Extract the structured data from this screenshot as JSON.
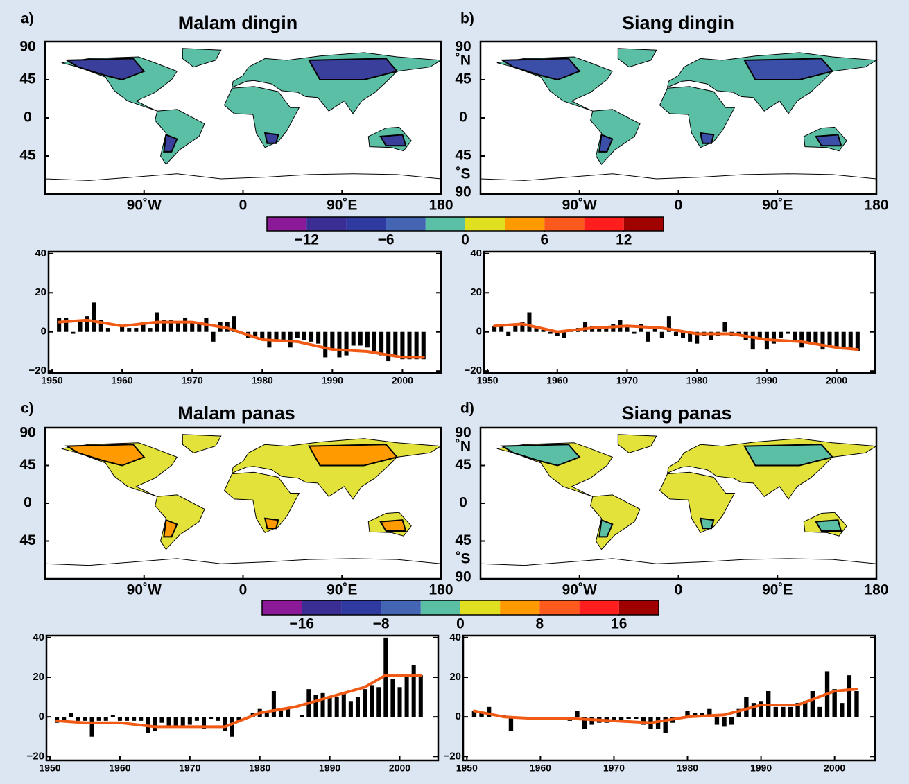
{
  "chart_data": [
    {
      "type": "map",
      "label": "a)",
      "title": "Malam dingin",
      "land_color": "#5bbfa6",
      "accent_color": "#3b3f9c",
      "xlim": [
        -180,
        180
      ],
      "ylim": [
        -90,
        90
      ],
      "xticks": [
        {
          "value": -90,
          "label": "90˚W"
        },
        0,
        {
          "value": 90,
          "label": "90˚E"
        },
        180
      ],
      "yticks": [
        90,
        45,
        0,
        {
          "value": -45,
          "label": "45"
        }
      ]
    },
    {
      "type": "map",
      "label": "b)",
      "title": "Siang dingin",
      "land_color": "#5bbfa6",
      "accent_color": "#3b4fa8",
      "xlim": [
        -180,
        180
      ],
      "ylim": [
        -90,
        90
      ],
      "xticks": [
        {
          "value": -90,
          "label": "90˚W"
        },
        0,
        {
          "value": 90,
          "label": "90˚E"
        },
        180
      ],
      "yticks": [
        90,
        45,
        0,
        {
          "value": -45,
          "label": "45"
        },
        {
          "value": -90,
          "label": "90"
        }
      ],
      "north_label": "˚N",
      "south_label": "˚S"
    },
    {
      "type": "colorbar",
      "lim": [
        -15,
        15
      ],
      "colors": [
        "#8c1a98",
        "#3a2e94",
        "#2f3aa0",
        "#4464b4",
        "#5bbfa6",
        "#e0e020",
        "#ff9a00",
        "#ff5a1e",
        "#ff1e1e",
        "#a00000"
      ],
      "ticks": [
        {
          "value": -12,
          "label": "−12"
        },
        {
          "value": -6,
          "label": "−6"
        },
        0,
        6,
        12
      ]
    },
    {
      "type": "bar",
      "color": "#000000",
      "xlim": [
        1949.5,
        2005.5
      ],
      "ylim": [
        -21,
        41
      ],
      "xticks": [
        1950,
        1960,
        1970,
        1980,
        1990,
        2000
      ],
      "yticks": [
        {
          "value": -20,
          "label": "−20"
        },
        0,
        20,
        40
      ],
      "x": [
        1951,
        1952,
        1953,
        1954,
        1955,
        1956,
        1957,
        1958,
        1959,
        1960,
        1961,
        1962,
        1963,
        1964,
        1965,
        1966,
        1967,
        1968,
        1969,
        1970,
        1971,
        1972,
        1973,
        1974,
        1975,
        1976,
        1977,
        1978,
        1979,
        1980,
        1981,
        1982,
        1983,
        1984,
        1985,
        1986,
        1987,
        1988,
        1989,
        1990,
        1991,
        1992,
        1993,
        1994,
        1995,
        1996,
        1997,
        1998,
        1999,
        2000,
        2001,
        2002,
        2003
      ],
      "values": [
        7,
        7,
        -1,
        5,
        8,
        15,
        6,
        2,
        0,
        3,
        2,
        2,
        5,
        2,
        10,
        6,
        6,
        5,
        7,
        5,
        5,
        7,
        -5,
        5,
        5,
        8,
        -1,
        -3,
        -3,
        -4,
        -8,
        -4,
        -4,
        -8,
        -3,
        -4,
        -5,
        -6,
        -13,
        -9,
        -13,
        -12,
        -7,
        -7,
        -8,
        -10,
        -12,
        -15,
        -12,
        -14,
        -14,
        -14,
        -14
      ],
      "trend": {
        "color": "#f05a14",
        "x": [
          1951,
          1955,
          1960,
          1965,
          1970,
          1975,
          1980,
          1985,
          1990,
          1995,
          2000,
          2003
        ],
        "values": [
          5,
          6,
          3,
          5,
          5,
          2,
          -4,
          -5,
          -9,
          -10,
          -13,
          -13
        ]
      }
    },
    {
      "type": "bar",
      "color": "#000000",
      "xlim": [
        1949.5,
        2005.5
      ],
      "ylim": [
        -21,
        41
      ],
      "xticks": [
        1950,
        1960,
        1970,
        1980,
        1990,
        2000
      ],
      "yticks": [
        {
          "value": -20,
          "label": "−20"
        },
        0,
        20,
        40
      ],
      "x": [
        1951,
        1952,
        1953,
        1954,
        1955,
        1956,
        1957,
        1958,
        1959,
        1960,
        1961,
        1962,
        1963,
        1964,
        1965,
        1966,
        1967,
        1968,
        1969,
        1970,
        1971,
        1972,
        1973,
        1974,
        1975,
        1976,
        1977,
        1978,
        1979,
        1980,
        1981,
        1982,
        1983,
        1984,
        1985,
        1986,
        1987,
        1988,
        1989,
        1990,
        1991,
        1992,
        1993,
        1994,
        1995,
        1996,
        1997,
        1998,
        1999,
        2000,
        2001,
        2002,
        2003
      ],
      "values": [
        3,
        3,
        -2,
        4,
        5,
        10,
        3,
        1,
        -1,
        -2,
        -3,
        1,
        2,
        5,
        3,
        3,
        3,
        4,
        6,
        3,
        -1,
        4,
        -5,
        3,
        -3,
        8,
        -2,
        -3,
        -5,
        -6,
        -2,
        -4,
        -2,
        5,
        -2,
        -2,
        -4,
        -9,
        -4,
        -9,
        -6,
        -3,
        -1,
        -4,
        -8,
        -6,
        -6,
        -9,
        -8,
        -8,
        -9,
        -9,
        -10
      ],
      "trend": {
        "color": "#f05a14",
        "x": [
          1951,
          1955,
          1960,
          1965,
          1970,
          1975,
          1980,
          1985,
          1990,
          1995,
          2000,
          2003
        ],
        "values": [
          3,
          4,
          0,
          2,
          3,
          2,
          -1,
          -1,
          -4,
          -5,
          -8,
          -9
        ]
      }
    },
    {
      "type": "map",
      "label": "c)",
      "title": "Malam panas",
      "land_color": "#e2e23a",
      "accent_color": "#ff9a00",
      "xlim": [
        -180,
        180
      ],
      "ylim": [
        -90,
        90
      ],
      "xticks": [
        {
          "value": -90,
          "label": "90˚W"
        },
        0,
        {
          "value": 90,
          "label": "90˚E"
        },
        180
      ],
      "yticks": [
        90,
        45,
        0,
        {
          "value": -45,
          "label": "45"
        }
      ]
    },
    {
      "type": "map",
      "label": "d)",
      "title": "Siang panas",
      "land_color": "#e2e23a",
      "accent_color": "#5bbfa6",
      "xlim": [
        -180,
        180
      ],
      "ylim": [
        -90,
        90
      ],
      "xticks": [
        {
          "value": -90,
          "label": "90˚W"
        },
        0,
        {
          "value": 90,
          "label": "90˚E"
        },
        180
      ],
      "yticks": [
        90,
        45,
        0,
        {
          "value": -45,
          "label": "45"
        },
        {
          "value": -90,
          "label": "90"
        }
      ],
      "north_label": "˚N",
      "south_label": "˚S"
    },
    {
      "type": "colorbar",
      "lim": [
        -20,
        20
      ],
      "colors": [
        "#8c1a98",
        "#3a2e94",
        "#2f3aa0",
        "#4464b4",
        "#5bbfa6",
        "#e0e020",
        "#ff9a00",
        "#ff5a1e",
        "#ff1e1e",
        "#a00000"
      ],
      "ticks": [
        {
          "value": -16,
          "label": "−16"
        },
        {
          "value": -8,
          "label": "−8"
        },
        0,
        8,
        16
      ]
    },
    {
      "type": "bar",
      "color": "#000000",
      "xlim": [
        1949.5,
        2005.5
      ],
      "ylim": [
        -22,
        41
      ],
      "xticks": [
        1950,
        1960,
        1970,
        1980,
        1990,
        2000
      ],
      "yticks": [
        {
          "value": -20,
          "label": "−20"
        },
        0,
        20,
        40
      ],
      "x": [
        1951,
        1952,
        1953,
        1954,
        1955,
        1956,
        1957,
        1958,
        1959,
        1960,
        1961,
        1962,
        1963,
        1964,
        1965,
        1966,
        1967,
        1968,
        1969,
        1970,
        1971,
        1972,
        1973,
        1974,
        1975,
        1976,
        1977,
        1978,
        1979,
        1980,
        1981,
        1982,
        1983,
        1984,
        1985,
        1986,
        1987,
        1988,
        1989,
        1990,
        1991,
        1992,
        1993,
        1994,
        1995,
        1996,
        1997,
        1998,
        1999,
        2000,
        2001,
        2002,
        2003
      ],
      "values": [
        -3,
        -2,
        2,
        -2,
        -2,
        -10,
        -2,
        -2,
        1,
        -2,
        -2,
        -2,
        -2,
        -8,
        -7,
        -3,
        -5,
        -5,
        -5,
        -4,
        -2,
        -6,
        -1,
        -2,
        -7,
        -10,
        -2,
        0,
        2,
        4,
        3,
        13,
        3,
        4,
        0,
        1,
        14,
        11,
        12,
        10,
        10,
        12,
        8,
        10,
        14,
        16,
        15,
        40,
        19,
        15,
        20,
        26,
        21
      ],
      "trend": {
        "color": "#f05a14",
        "x": [
          1951,
          1955,
          1960,
          1965,
          1970,
          1975,
          1980,
          1985,
          1990,
          1995,
          1998,
          2000,
          2003
        ],
        "values": [
          -2,
          -3,
          -3,
          -5,
          -5,
          -5,
          2,
          5,
          10,
          15,
          21,
          21,
          21
        ]
      }
    },
    {
      "type": "bar",
      "color": "#000000",
      "xlim": [
        1949.5,
        2005.5
      ],
      "ylim": [
        -22,
        41
      ],
      "xticks": [
        1950,
        1960,
        1970,
        1980,
        1990,
        2000
      ],
      "yticks": [
        {
          "value": -20,
          "label": "−20"
        },
        0,
        20,
        40
      ],
      "x": [
        1951,
        1952,
        1953,
        1954,
        1955,
        1956,
        1957,
        1958,
        1959,
        1960,
        1961,
        1962,
        1963,
        1964,
        1965,
        1966,
        1967,
        1968,
        1969,
        1970,
        1971,
        1972,
        1973,
        1974,
        1975,
        1976,
        1977,
        1978,
        1979,
        1980,
        1981,
        1982,
        1983,
        1984,
        1985,
        1986,
        1987,
        1988,
        1989,
        1990,
        1991,
        1992,
        1993,
        1994,
        1995,
        1996,
        1997,
        1998,
        1999,
        2000,
        2001,
        2002,
        2003
      ],
      "values": [
        3,
        2,
        5,
        0,
        1,
        -7,
        -1,
        -1,
        -1,
        -1,
        -1,
        -1,
        -1,
        -2,
        3,
        -6,
        -4,
        -3,
        -3,
        -2,
        -2,
        -1,
        -1,
        -4,
        -6,
        -6,
        -8,
        -3,
        0,
        3,
        2,
        2,
        4,
        -4,
        -5,
        -4,
        4,
        10,
        7,
        8,
        13,
        5,
        5,
        5,
        7,
        8,
        13,
        5,
        23,
        14,
        7,
        21,
        13
      ],
      "trend": {
        "color": "#f05a14",
        "x": [
          1951,
          1955,
          1960,
          1965,
          1970,
          1975,
          1980,
          1985,
          1990,
          1995,
          2000,
          2003
        ],
        "values": [
          3,
          0,
          -1,
          -1,
          -2,
          -3,
          0,
          1,
          6,
          6,
          13,
          14
        ]
      }
    }
  ]
}
